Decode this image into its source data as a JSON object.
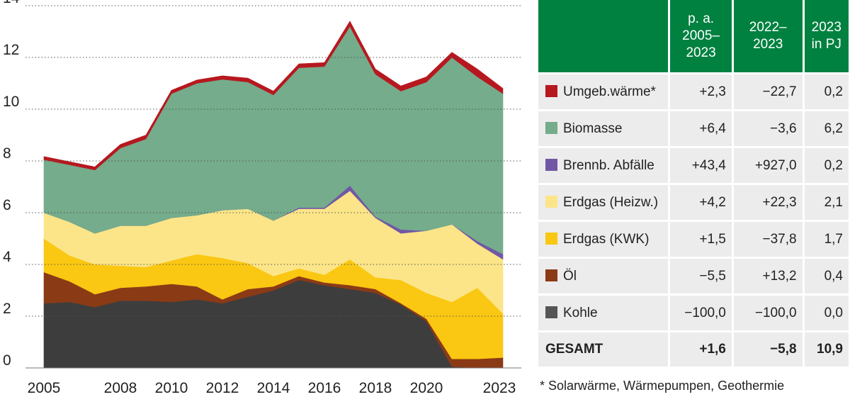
{
  "chart_data": {
    "type": "area",
    "stacked": true,
    "x": [
      2005,
      2006,
      2007,
      2008,
      2009,
      2010,
      2011,
      2012,
      2013,
      2014,
      2015,
      2016,
      2017,
      2018,
      2019,
      2020,
      2021,
      2022,
      2023
    ],
    "xticks": [
      "2005",
      "2008",
      "2010",
      "2012",
      "2014",
      "2016",
      "2018",
      "2020",
      "2023"
    ],
    "ylim": [
      0,
      14
    ],
    "yticks": [
      "0",
      "2",
      "4",
      "6",
      "8",
      "10",
      "12",
      "14"
    ],
    "grid": "horizontal dotted",
    "series": [
      {
        "name": "Kohle",
        "color": "#3d3d3d",
        "values": [
          2.5,
          2.55,
          2.35,
          2.6,
          2.6,
          2.55,
          2.65,
          2.5,
          2.75,
          3.0,
          3.4,
          3.2,
          3.05,
          2.9,
          2.45,
          1.8,
          0.05,
          0.0,
          0.0
        ]
      },
      {
        "name": "Öl",
        "color": "#8b3a16",
        "values": [
          1.2,
          0.8,
          0.5,
          0.5,
          0.55,
          0.7,
          0.5,
          0.15,
          0.3,
          0.15,
          0.15,
          0.1,
          0.15,
          0.15,
          0.05,
          0.1,
          0.3,
          0.35,
          0.4
        ]
      },
      {
        "name": "Erdgas (KWK)",
        "color": "#fac712",
        "values": [
          1.3,
          1.0,
          1.15,
          0.85,
          0.75,
          0.9,
          1.25,
          1.6,
          1.0,
          0.4,
          0.3,
          0.3,
          1.0,
          0.45,
          0.9,
          1.0,
          2.2,
          2.75,
          1.7
        ]
      },
      {
        "name": "Erdgas (Heizw.)",
        "color": "#fbe588",
        "values": [
          1.0,
          1.3,
          1.2,
          1.55,
          1.6,
          1.65,
          1.5,
          1.85,
          2.1,
          2.15,
          2.3,
          2.55,
          2.65,
          2.3,
          1.8,
          2.4,
          3.0,
          1.7,
          2.1
        ]
      },
      {
        "name": "Brennb. Abfälle",
        "color": "#7158a5",
        "values": [
          0,
          0,
          0,
          0,
          0,
          0,
          0,
          0,
          0,
          0,
          0.05,
          0.05,
          0.2,
          0.05,
          0.15,
          0,
          0,
          0.1,
          0.2
        ]
      },
      {
        "name": "Biomasse",
        "color": "#74ac8c",
        "values": [
          2.05,
          2.2,
          2.45,
          3.0,
          3.35,
          4.8,
          5.1,
          5.05,
          4.9,
          4.85,
          5.4,
          5.45,
          6.15,
          5.5,
          5.35,
          5.75,
          6.45,
          6.35,
          6.2
        ]
      },
      {
        "name": "Umgeb.wärme",
        "color": "#b7181f",
        "values": [
          0.12,
          0.12,
          0.12,
          0.14,
          0.15,
          0.13,
          0.13,
          0.14,
          0.15,
          0.15,
          0.15,
          0.15,
          0.2,
          0.2,
          0.2,
          0.2,
          0.2,
          0.3,
          0.2
        ]
      }
    ]
  },
  "table": {
    "headers": {
      "col1": [
        "p. a.",
        "2005–",
        "2023"
      ],
      "col2": [
        "2022–",
        "2023"
      ],
      "col3": [
        "2023",
        "in PJ"
      ]
    },
    "rows": [
      {
        "label": "Umgeb.wärme*",
        "color": "#b7181f",
        "pa": "+2,3",
        "change": "−22,7",
        "pj": "0,2"
      },
      {
        "label": "Biomasse",
        "color": "#74ac8c",
        "pa": "+6,4",
        "change": "−3,6",
        "pj": "6,2"
      },
      {
        "label": "Brennb. Abfälle",
        "color": "#7158a5",
        "pa": "+43,4",
        "change": "+927,0",
        "pj": "0,2"
      },
      {
        "label": "Erdgas (Heizw.)",
        "color": "#fbe588",
        "pa": "+4,2",
        "change": "+22,3",
        "pj": "2,1"
      },
      {
        "label": "Erdgas (KWK)",
        "color": "#fac712",
        "pa": "+1,5",
        "change": "−37,8",
        "pj": "1,7"
      },
      {
        "label": "Öl",
        "color": "#8b3a16",
        "pa": "−5,5",
        "change": "+13,2",
        "pj": "0,4"
      },
      {
        "label": "Kohle",
        "color": "#555555",
        "pa": "−100,0",
        "change": "−100,0",
        "pj": "0,0"
      }
    ],
    "total": {
      "label": "GESAMT",
      "pa": "+1,6",
      "change": "−5,8",
      "pj": "10,9"
    }
  },
  "footnote": "* Solarwärme, Wärmepumpen, Geothermie"
}
